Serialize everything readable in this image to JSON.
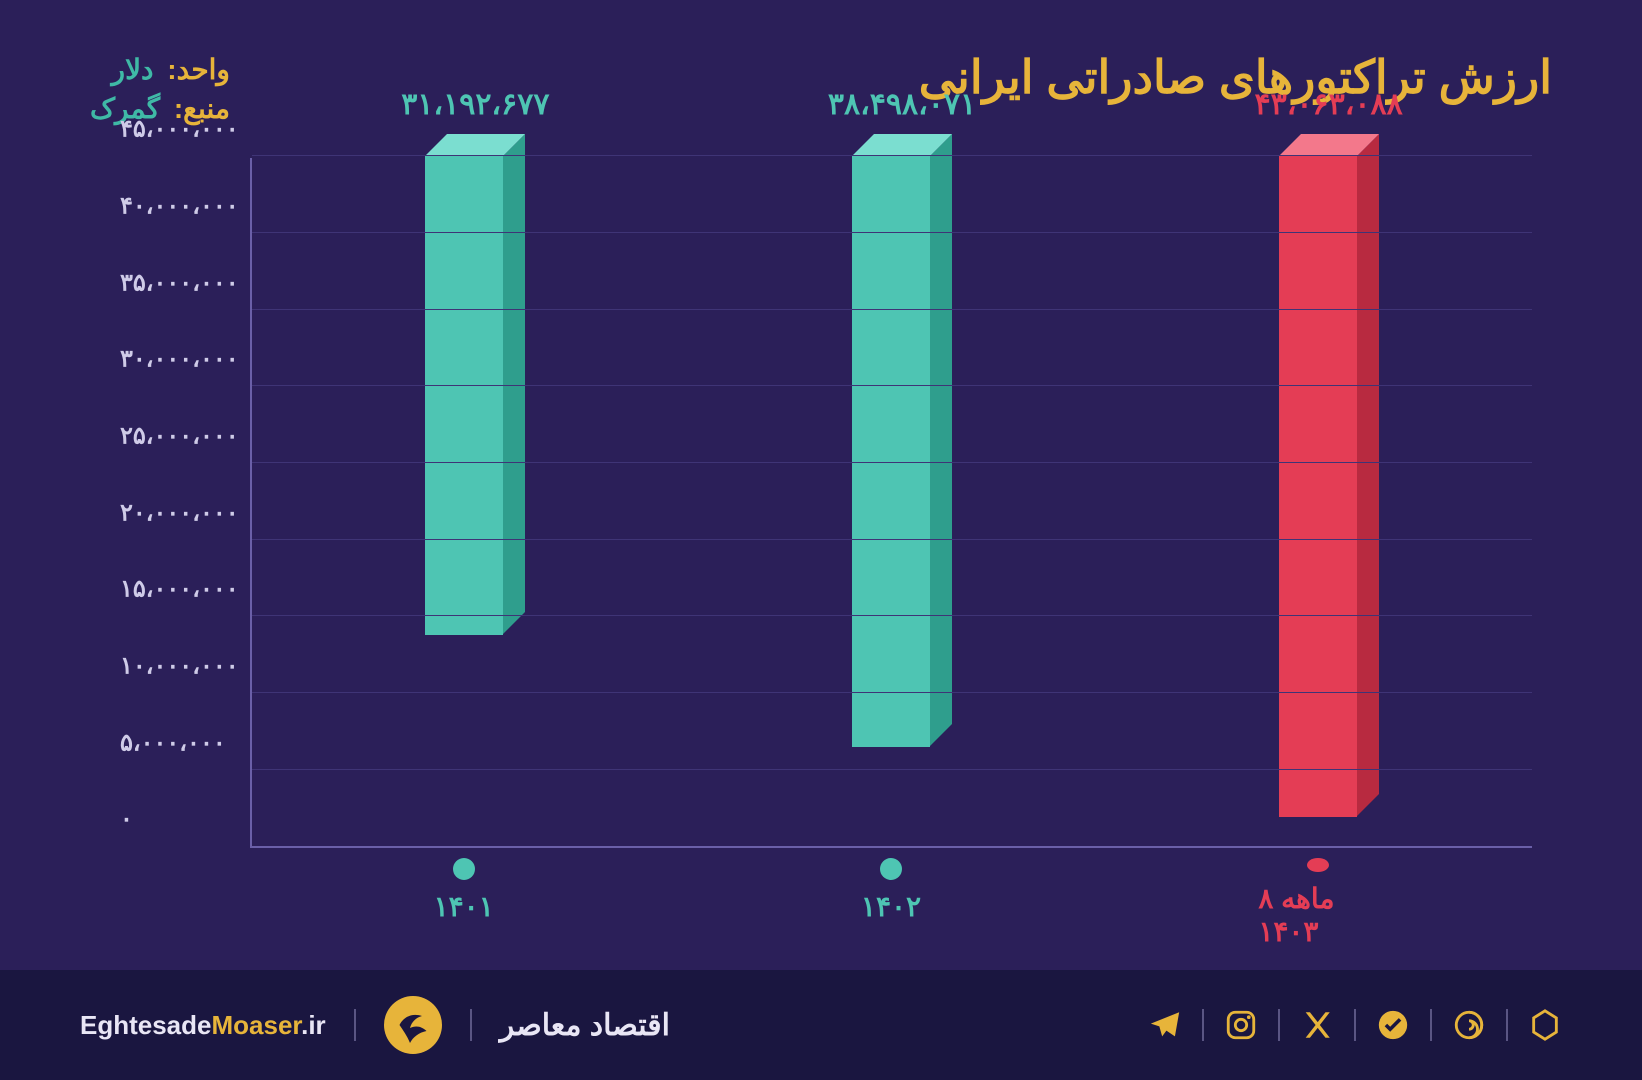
{
  "colors": {
    "background_main": "#2b1f59",
    "background_footer": "#1a1640",
    "title": "#e7b43a",
    "meta_label": "#e7b43a",
    "meta_value": "#3fb9a6",
    "axis": "#6a5fa8",
    "grid": "#3f3476",
    "ytick": "#cfcbe8",
    "accent_text": "#e7b43a",
    "footer_text": "#e9e6f5",
    "footer_icon": "#e7b43a",
    "divider": "#9a93c6"
  },
  "title": "ارزش تراکتورهای صادراتی ایرانی",
  "meta": {
    "unit_label": "واحد:",
    "unit_value": "دلار",
    "source_label": "منبع:",
    "source_value": "گمرک"
  },
  "chart": {
    "type": "bar",
    "ymin": 0,
    "ymax": 45000000,
    "ytick_step": 5000000,
    "ytick_labels": [
      "۰",
      "۵،۰۰۰،۰۰۰",
      "۱۰،۰۰۰،۰۰۰",
      "۱۵،۰۰۰،۰۰۰",
      "۲۰،۰۰۰،۰۰۰",
      "۲۵،۰۰۰،۰۰۰",
      "۳۰،۰۰۰،۰۰۰",
      "۳۵،۰۰۰،۰۰۰",
      "۴۰،۰۰۰،۰۰۰",
      "۴۵،۰۰۰،۰۰۰"
    ],
    "bars": [
      {
        "category": "۱۴۰۱",
        "value": 31192677,
        "value_label": "۳۱،۱۹۲،۶۷۷",
        "front_color": "#4ec5b3",
        "side_color": "#2f9e8d",
        "top_color": "#7bded0",
        "label_color": "#4ec5b3",
        "dot_color": "#4ec5b3",
        "x_text_color": "#4ec5b3"
      },
      {
        "category": "۱۴۰۲",
        "value": 38498071,
        "value_label": "۳۸،۴۹۸،۰۷۱",
        "front_color": "#4ec5b3",
        "side_color": "#2f9e8d",
        "top_color": "#7bded0",
        "label_color": "#4ec5b3",
        "dot_color": "#4ec5b3",
        "x_text_color": "#4ec5b3"
      },
      {
        "category": "۸ ماهه ۱۴۰۳",
        "value": 43063088,
        "value_label": "۴۳،۰۶۳،۰۸۸",
        "front_color": "#e43d55",
        "side_color": "#b82a40",
        "top_color": "#f3788b",
        "label_color": "#e43d55",
        "dot_color": "#e43d55",
        "x_text_color": "#e43d55"
      }
    ]
  },
  "footer": {
    "brand_fa": "اقتصاد معاصر",
    "site_pre": "Eghtesade",
    "site_accent": "Moaser",
    "site_post": ".ir",
    "logo_bg": "#e7b43a",
    "social": [
      "telegram",
      "instagram",
      "x",
      "check",
      "edge",
      "hex"
    ]
  }
}
